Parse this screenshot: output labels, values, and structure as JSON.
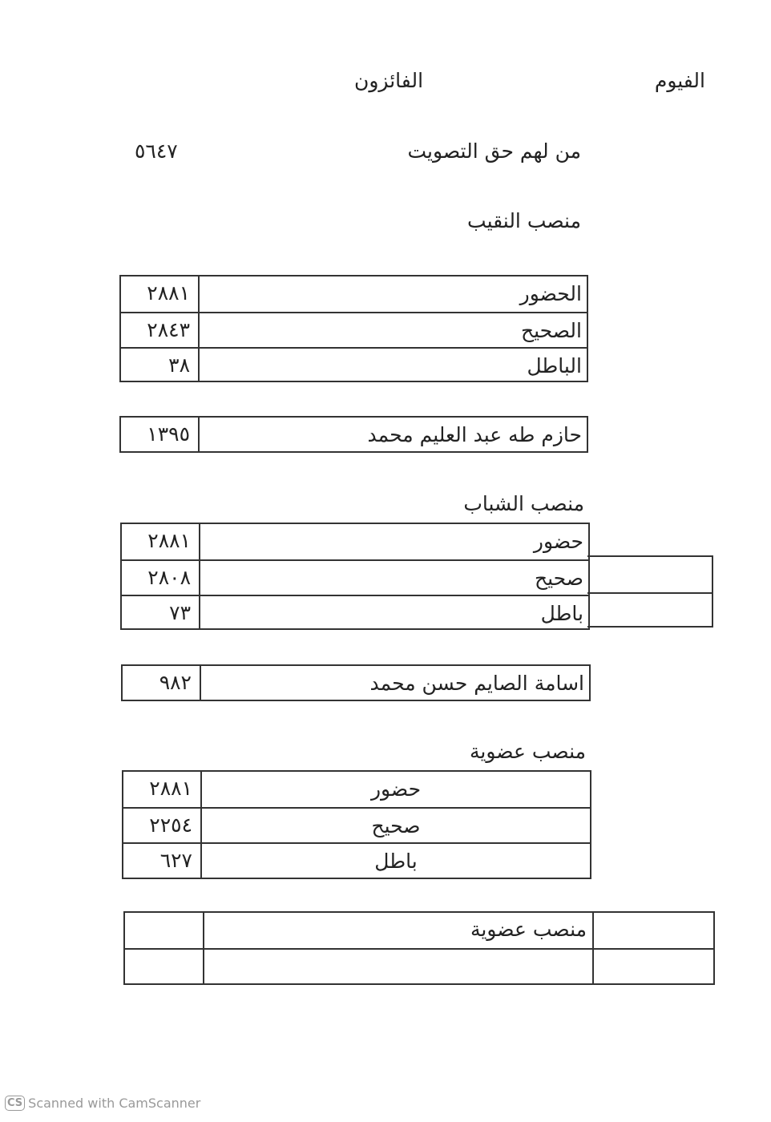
{
  "header": {
    "governorate": "الفيوم",
    "title": "الفائزون"
  },
  "eligible_voters": {
    "label": "من لهم حق التصويت",
    "value": "٥٦٤٧"
  },
  "sections": [
    {
      "title": "منصب النقيب",
      "stats": [
        {
          "label": "الحضور",
          "value": "٢٨٨١"
        },
        {
          "label": "الصحيح",
          "value": "٢٨٤٣"
        },
        {
          "label": "الباطل",
          "value": "٣٨"
        }
      ],
      "winner": {
        "name": "حازم طه عبد العليم محمد",
        "votes": "١٣٩٥"
      }
    },
    {
      "title": "منصب الشباب",
      "stats": [
        {
          "label": "حضور",
          "value": "٢٨٨١"
        },
        {
          "label": "صحيح",
          "value": "٢٨٠٨"
        },
        {
          "label": "باطل",
          "value": "٧٣"
        }
      ],
      "winner": {
        "name": "اسامة الصايم حسن محمد",
        "votes": "٩٨٢"
      }
    },
    {
      "title": "منصب عضوية",
      "stats": [
        {
          "label": "حضور",
          "value": "٢٨٨١"
        },
        {
          "label": "صحيح",
          "value": "٢٢٥٤"
        },
        {
          "label": "باطل",
          "value": "٦٢٧"
        }
      ]
    }
  ],
  "final_table": {
    "label": "منصب عضوية"
  },
  "footer": {
    "badge": "CS",
    "text": "Scanned with CamScanner"
  }
}
